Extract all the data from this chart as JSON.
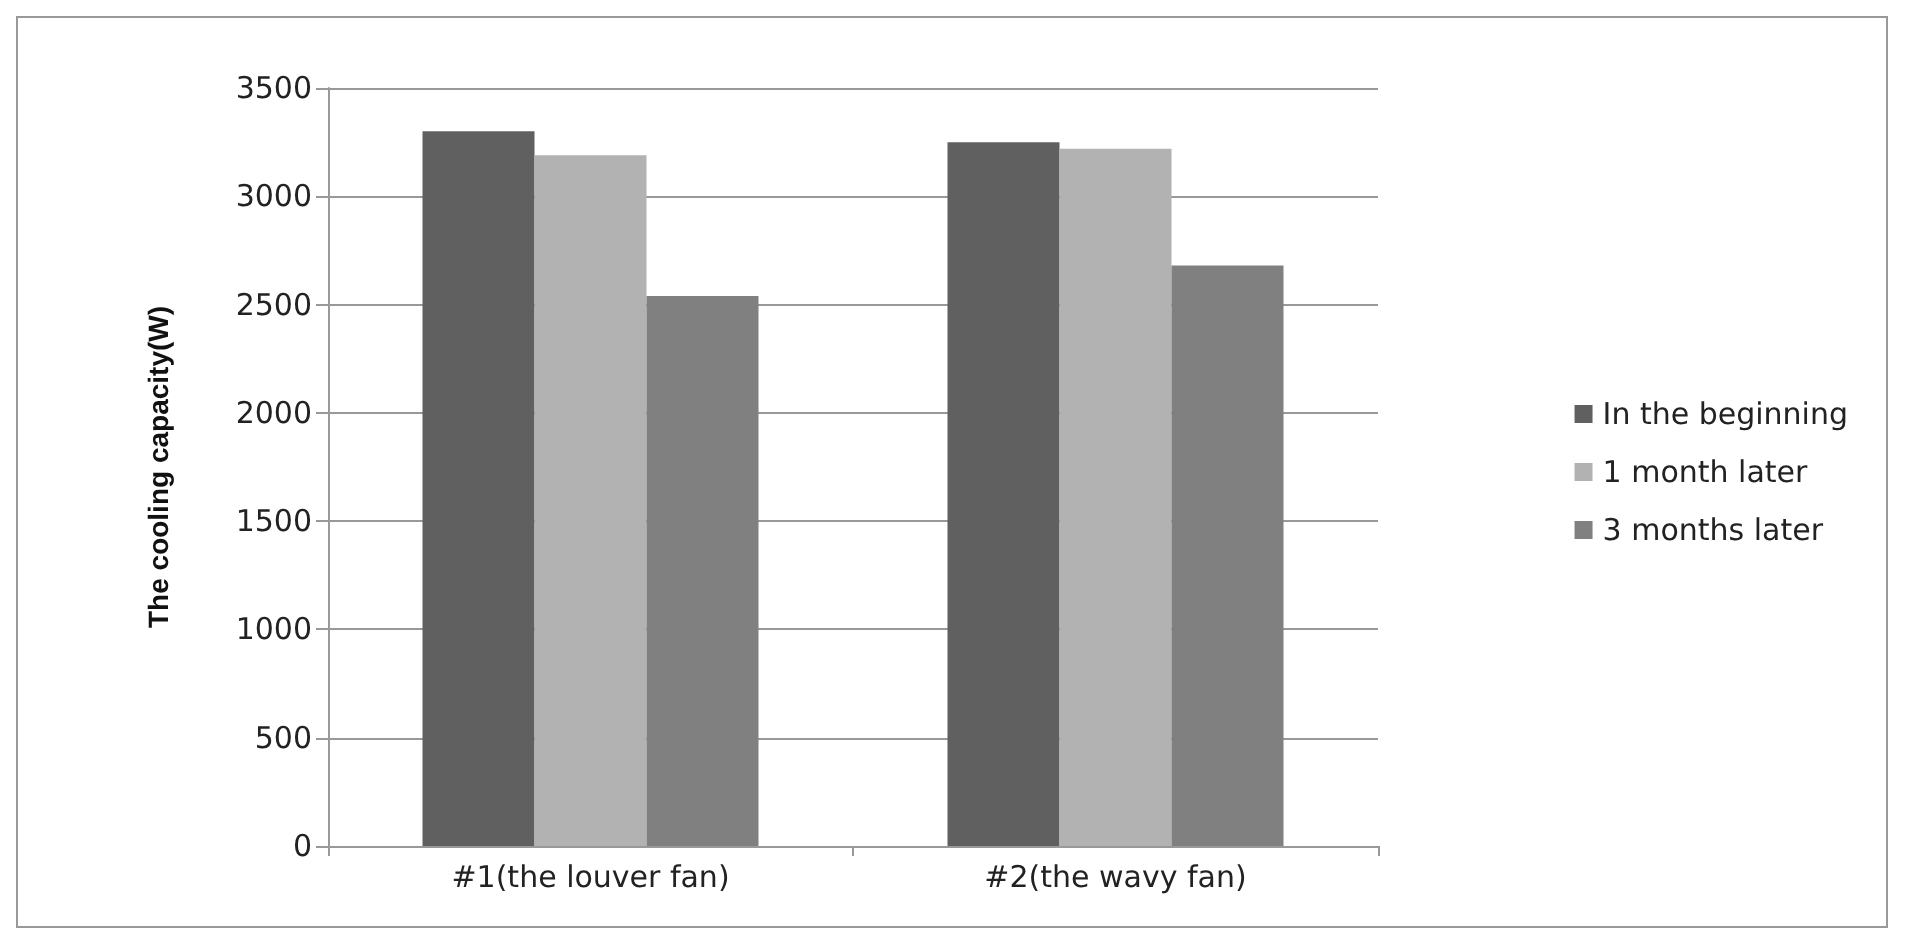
{
  "chart_data": {
    "type": "bar",
    "ylabel": "The cooling capacity(W)",
    "categories": [
      "#1(the louver fan)",
      "#2(the wavy fan)"
    ],
    "series": [
      {
        "name": "In the beginning",
        "color": "#606060",
        "values": [
          3300,
          3250
        ]
      },
      {
        "name": "1 month later",
        "color": "#b2b2b2",
        "values": [
          3190,
          3220
        ]
      },
      {
        "name": "3 months later",
        "color": "#808080",
        "values": [
          2540,
          2680
        ]
      }
    ],
    "ylim": [
      0,
      3500
    ],
    "yticks": [
      0,
      500,
      1000,
      1500,
      2000,
      2500,
      3000,
      3500
    ],
    "grid": "y",
    "legend": "right"
  }
}
